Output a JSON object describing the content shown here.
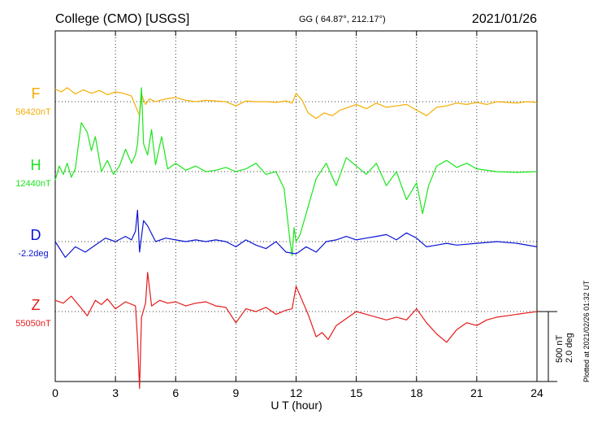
{
  "header": {
    "station": "College (CMO)  [USGS]",
    "coords": "GG ( 64.87°, 212.17°)",
    "date": "2021/01/26"
  },
  "footer": {
    "plotted": "Plotted at 2021/02/26 01:32 UT"
  },
  "scale": {
    "nt": "500 nT",
    "deg": "2.0 deg"
  },
  "chart_data": {
    "type": "line",
    "xlabel": "U T (hour)",
    "xlim": [
      0,
      24
    ],
    "xticks": [
      0,
      3,
      6,
      9,
      12,
      15,
      18,
      21,
      24
    ],
    "grid": true,
    "series": [
      {
        "name": "F",
        "baseline_label": "56420nT",
        "color": "#f5ad00",
        "t": [
          0,
          0.3,
          0.6,
          1.0,
          1.4,
          1.8,
          2.2,
          2.6,
          3.0,
          3.4,
          3.8,
          4.0,
          4.2,
          4.3,
          4.5,
          4.7,
          5.0,
          5.5,
          6.0,
          6.5,
          7.0,
          7.5,
          8.0,
          8.5,
          9.0,
          9.5,
          10.0,
          10.5,
          11.0,
          11.5,
          11.8,
          12.0,
          12.3,
          12.6,
          13.0,
          13.4,
          13.8,
          14.2,
          14.6,
          15.0,
          15.5,
          16.0,
          16.5,
          17.0,
          17.5,
          18.0,
          18.5,
          19.0,
          19.5,
          20.0,
          20.5,
          21.0,
          21.5,
          22.0,
          22.5,
          23.0,
          23.5,
          24.0
        ],
        "v": [
          90,
          70,
          100,
          55,
          85,
          60,
          80,
          50,
          70,
          60,
          40,
          -30,
          -100,
          50,
          -20,
          20,
          0,
          20,
          30,
          10,
          0,
          10,
          5,
          0,
          -30,
          5,
          0,
          0,
          -5,
          5,
          -10,
          60,
          10,
          -80,
          -120,
          -80,
          -100,
          -60,
          -40,
          -20,
          -50,
          -10,
          -40,
          -30,
          -20,
          -60,
          -100,
          -40,
          -30,
          -10,
          -20,
          -5,
          -20,
          0,
          -5,
          -10,
          0,
          -5
        ]
      },
      {
        "name": "H",
        "baseline_label": "12440nT",
        "color": "#1ae61a",
        "t": [
          0,
          0.2,
          0.4,
          0.6,
          0.8,
          1.0,
          1.3,
          1.6,
          1.8,
          2.0,
          2.3,
          2.6,
          2.9,
          3.2,
          3.5,
          3.8,
          4.0,
          4.1,
          4.2,
          4.3,
          4.4,
          4.6,
          4.8,
          5.0,
          5.3,
          5.6,
          6.0,
          6.5,
          7.0,
          7.5,
          8.0,
          8.5,
          9.0,
          9.5,
          10.0,
          10.5,
          11.0,
          11.4,
          11.7,
          11.8,
          11.9,
          12.0,
          12.2,
          12.5,
          13.0,
          13.5,
          14.0,
          14.5,
          15.0,
          15.5,
          16.0,
          16.5,
          17.0,
          17.5,
          18.0,
          18.3,
          18.6,
          19.0,
          19.5,
          20.0,
          20.5,
          21.0,
          22.0,
          23.0,
          24.0
        ],
        "v": [
          -60,
          40,
          -20,
          60,
          -40,
          20,
          350,
          280,
          150,
          250,
          0,
          80,
          -20,
          40,
          160,
          60,
          120,
          200,
          400,
          600,
          200,
          120,
          300,
          50,
          250,
          20,
          60,
          10,
          40,
          0,
          10,
          30,
          0,
          20,
          60,
          -20,
          0,
          -120,
          -500,
          -600,
          -400,
          -500,
          -450,
          -300,
          -50,
          60,
          -100,
          100,
          40,
          -20,
          60,
          -100,
          0,
          -200,
          -80,
          -300,
          -100,
          40,
          80,
          30,
          60,
          20,
          0,
          -5,
          0
        ]
      },
      {
        "name": "D",
        "baseline_label": "-2.2deg",
        "color": "#0a14d2",
        "t": [
          0,
          0.5,
          1.0,
          1.5,
          2.0,
          2.5,
          3.0,
          3.5,
          3.8,
          4.0,
          4.1,
          4.2,
          4.4,
          4.6,
          5.0,
          5.5,
          6.0,
          6.5,
          7.0,
          7.5,
          8.0,
          8.5,
          9.0,
          9.5,
          10.0,
          10.5,
          11.0,
          11.5,
          12.0,
          12.5,
          13.0,
          13.5,
          14.0,
          14.5,
          15.0,
          15.5,
          16.0,
          16.5,
          17.0,
          17.5,
          18.0,
          18.5,
          19.0,
          19.5,
          20.0,
          21.0,
          22.0,
          23.0,
          24.0
        ],
        "v": [
          0.0,
          -0.45,
          -0.15,
          -0.3,
          -0.1,
          0.1,
          0.0,
          0.15,
          0.05,
          0.3,
          0.9,
          -0.3,
          0.6,
          0.45,
          0.0,
          0.1,
          0.05,
          0.0,
          0.05,
          0.0,
          0.05,
          0.0,
          -0.15,
          0.05,
          -0.1,
          -0.2,
          0.0,
          -0.3,
          -0.35,
          -0.15,
          -0.3,
          0.0,
          0.05,
          0.15,
          0.05,
          0.1,
          0.15,
          0.2,
          0.05,
          0.25,
          0.1,
          -0.15,
          -0.1,
          -0.05,
          -0.1,
          -0.05,
          0.0,
          -0.05,
          -0.15
        ]
      },
      {
        "name": "Z",
        "baseline_label": "55050nT",
        "color": "#e61a1a",
        "t": [
          0,
          0.4,
          0.8,
          1.2,
          1.6,
          2.0,
          2.3,
          2.6,
          3.0,
          3.5,
          4.0,
          4.1,
          4.2,
          4.3,
          4.5,
          4.6,
          4.8,
          5.2,
          5.6,
          6.0,
          6.5,
          7.0,
          7.5,
          8.0,
          8.5,
          9.0,
          9.5,
          10.0,
          10.5,
          11.0,
          11.5,
          11.8,
          12.0,
          12.3,
          12.6,
          13.0,
          13.3,
          13.6,
          14.0,
          14.5,
          15.0,
          15.5,
          16.0,
          16.5,
          17.0,
          17.5,
          18.0,
          18.5,
          19.0,
          19.5,
          20.0,
          20.5,
          21.0,
          21.5,
          22.0,
          22.5,
          23.0,
          23.5,
          24.0
        ],
        "v": [
          80,
          60,
          110,
          40,
          -30,
          80,
          50,
          90,
          20,
          70,
          40,
          -200,
          -550,
          -40,
          60,
          280,
          40,
          80,
          60,
          70,
          40,
          60,
          70,
          40,
          30,
          -80,
          20,
          0,
          30,
          -20,
          10,
          20,
          180,
          80,
          -20,
          -180,
          -150,
          -200,
          -100,
          -50,
          0,
          -20,
          -40,
          -60,
          -40,
          -60,
          20,
          -80,
          -160,
          -220,
          -130,
          -80,
          -100,
          -60,
          -40,
          -30,
          -20,
          -10,
          0
        ]
      }
    ]
  }
}
